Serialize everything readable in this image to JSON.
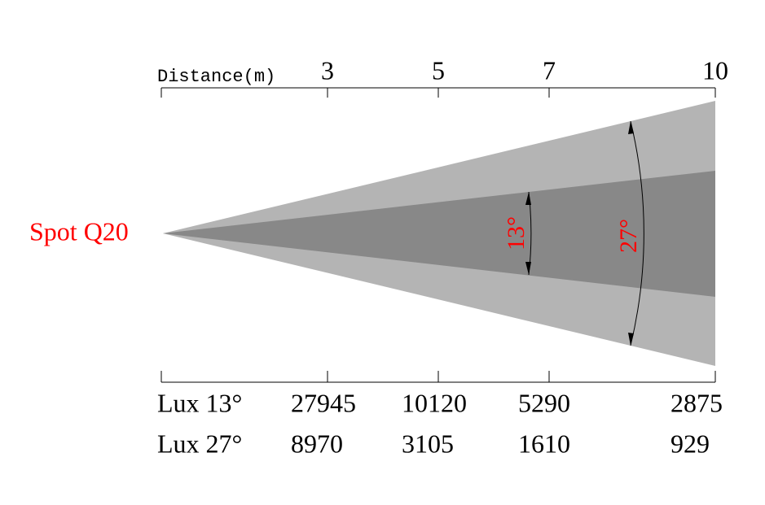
{
  "beam": {
    "name": "Spot Q20",
    "inner_angle": "13°",
    "outer_angle": "27°"
  },
  "distance_axis": {
    "title": "Distance(m)",
    "ticks": [
      "3",
      "5",
      "7",
      "10"
    ]
  },
  "lux_table": {
    "rows": [
      {
        "label": "Lux 13°",
        "values": [
          "27945",
          "10120",
          "5290",
          "2875"
        ]
      },
      {
        "label": "Lux 27°",
        "values": [
          "8970",
          "3105",
          "1610",
          "929"
        ]
      }
    ]
  }
}
